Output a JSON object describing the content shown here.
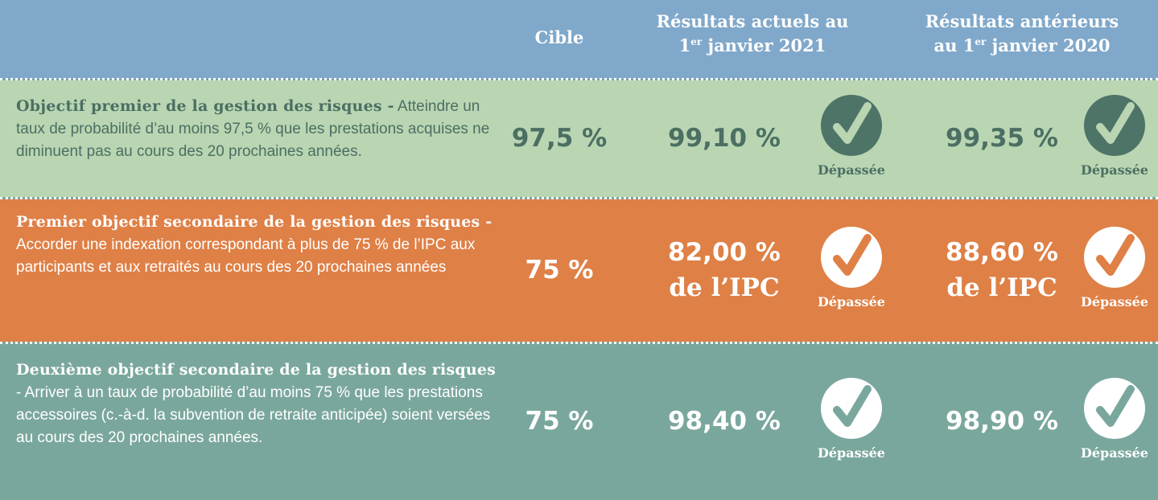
{
  "header": {
    "columns": [
      {
        "text": "Cible"
      },
      {
        "line1": "Résultats actuels au",
        "pre": "1",
        "sup": "er",
        "post": " janvier 2021"
      },
      {
        "line1": "Résultats antérieurs",
        "pre": "au 1",
        "sup": "er",
        "post": " janvier 2020"
      }
    ]
  },
  "rows": [
    {
      "title": "Objectif premier de la gestion des risques -",
      "description": "Atteindre un taux de probabilité d’au moins 97,5 % que les prestations acquises ne diminuent pas au cours des 20 prochaines années.",
      "target": "97,5 %",
      "current": [
        "99,10 %"
      ],
      "current_status": "Dépassée",
      "previous": [
        "99,35 %"
      ],
      "previous_status": "Dépassée"
    },
    {
      "title": "Premier objectif secondaire de la gestion des risques -",
      "description": "Accorder une indexation correspondant à plus de 75 % de l’IPC aux participants et aux retraités au cours des 20 prochaines années",
      "target": "75 %",
      "current": [
        "82,00 %",
        "de l’IPC"
      ],
      "current_status": "Dépassée",
      "previous": [
        "88,60 %",
        "de l’IPC"
      ],
      "previous_status": "Dépassée"
    },
    {
      "title": "Deuxième objectif secondaire de la gestion des risques",
      "description": "- Arriver à un taux de probabilité d’au moins 75 % que les prestations accessoires (c.-à-d. la subvention de retraite anticipée) soient versées au cours des 20 prochaines années.",
      "target": "75 %",
      "current": [
        "98,40 %"
      ],
      "current_status": "Dépassée",
      "previous": [
        "98,90 %"
      ],
      "previous_status": "Dépassée"
    }
  ]
}
